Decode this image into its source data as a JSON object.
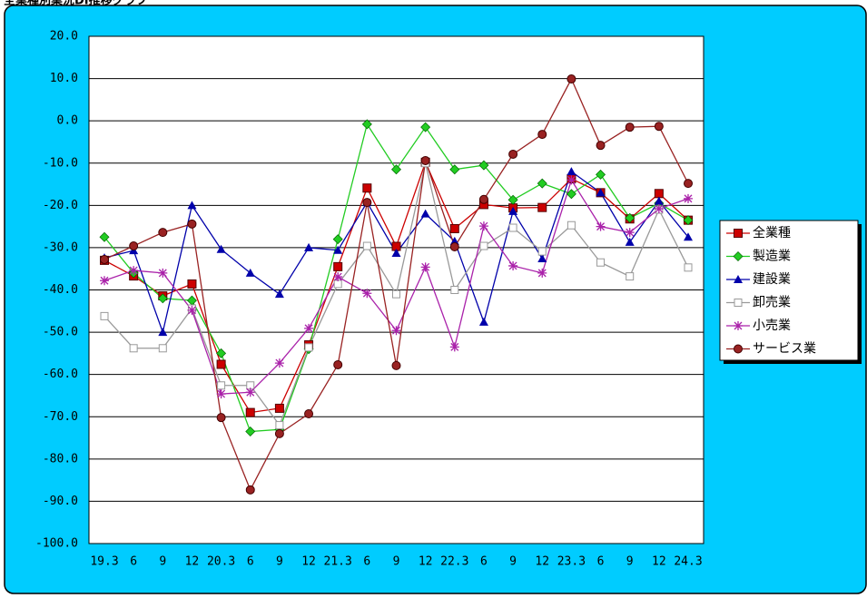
{
  "chart_data": {
    "type": "line",
    "title": "全業種別業況DI推移グラフ",
    "categories": [
      "19.3",
      "6",
      "9",
      "12",
      "20.3",
      "6",
      "9",
      "12",
      "21.3",
      "6",
      "9",
      "12",
      "22.3",
      "6",
      "9",
      "12",
      "23.3",
      "6",
      "9",
      "12",
      "24.3"
    ],
    "ylim": [
      -100,
      20
    ],
    "yticks": [
      {
        "value": -100,
        "label": "-100.0"
      },
      {
        "value": -90,
        "label": "-90.0"
      },
      {
        "value": -80,
        "label": "-80.0"
      },
      {
        "value": -70,
        "label": "-70.0"
      },
      {
        "value": -60,
        "label": "-60.0"
      },
      {
        "value": -50,
        "label": "-50.0"
      },
      {
        "value": -40,
        "label": "-40.0"
      },
      {
        "value": -30,
        "label": "-30.0"
      },
      {
        "value": -20,
        "label": "-20.0"
      },
      {
        "value": -10,
        "label": "-10.0"
      },
      {
        "value": 0,
        "label": "0.0"
      },
      {
        "value": 10,
        "label": "10.0"
      },
      {
        "value": 20,
        "label": "20.0"
      }
    ],
    "grid": true,
    "legend": "right",
    "series": [
      {
        "name": "全業種",
        "color": "#cc0000",
        "marker": "square",
        "values": [
          -33,
          -36.7,
          -41.4,
          -38.6,
          -57.6,
          -69,
          -68,
          -53,
          -34.5,
          -15.9,
          -29.7,
          -9.8,
          -25.5,
          -19.8,
          -20.6,
          -20.5,
          -13.7,
          -17,
          -23.2,
          -17.2,
          -23.5
        ]
      },
      {
        "name": "製造業",
        "color": "#22cc22",
        "marker": "diamond",
        "values": [
          -27.5,
          -36,
          -42,
          -42.5,
          -55,
          -73.5,
          -73,
          -54,
          -28,
          -0.8,
          -11.5,
          -1.5,
          -11.5,
          -10.5,
          -18.7,
          -14.8,
          -17.3,
          -12.7,
          -23,
          -19.5,
          -23.5
        ]
      },
      {
        "name": "建設業",
        "color": "#0000aa",
        "marker": "triangle",
        "values": [
          -32.4,
          -30.7,
          -50,
          -20,
          -30.4,
          -36,
          -41,
          -30,
          -30.6,
          -19.3,
          -31.3,
          -22,
          -28.5,
          -47.6,
          -21.4,
          -32.6,
          -12,
          -17,
          -28.7,
          -19,
          -27.5
        ]
      },
      {
        "name": "卸売業",
        "color": "#999999",
        "marker": "open-square",
        "values": [
          -46.2,
          -53.8,
          -53.8,
          -44.4,
          -62.6,
          -62.6,
          -72,
          -53.6,
          -38.6,
          -29.6,
          -41,
          -10,
          -40,
          -29.6,
          -25.3,
          -30.9,
          -24.7,
          -33.5,
          -36.8,
          -21,
          -34.7
        ]
      },
      {
        "name": "小売業",
        "color": "#aa22aa",
        "marker": "star",
        "values": [
          -37.8,
          -35.4,
          -36,
          -44.8,
          -64.6,
          -64.2,
          -57.3,
          -49.1,
          -36.9,
          -40.8,
          -49.6,
          -34.6,
          -53.5,
          -24.9,
          -34.3,
          -36,
          -14,
          -25,
          -26.4,
          -20.8,
          -18.4
        ]
      },
      {
        "name": "サービス業",
        "color": "#992222",
        "marker": "circle",
        "values": [
          -32.8,
          -29.6,
          -26.4,
          -24.4,
          -70.2,
          -87.3,
          -74,
          -69.3,
          -57.7,
          -19.3,
          -57.9,
          -9.4,
          -29.8,
          -18.6,
          -7.9,
          -3.2,
          9.9,
          -5.8,
          -1.5,
          -1.3,
          -14.8
        ]
      }
    ]
  }
}
